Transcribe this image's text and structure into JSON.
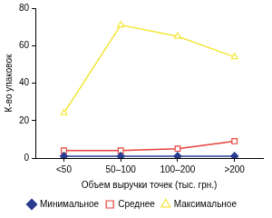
{
  "chart_data": {
    "type": "line",
    "x_label": "Объем выручки точек (тыс. грн.)",
    "y_label": "К-во упаковок",
    "categories": [
      "<50",
      "50–100",
      "100–200",
      ">200"
    ],
    "series": [
      {
        "name": "Минимальное",
        "color": "#2a3b8f",
        "marker": "diamond",
        "values": [
          1,
          1,
          1,
          1
        ]
      },
      {
        "name": "Среднее",
        "color": "#e8413a",
        "marker": "square",
        "values": [
          4,
          4,
          5,
          9
        ]
      },
      {
        "name": "Максимальное",
        "color": "#f5e63a",
        "marker": "triangle",
        "values": [
          24,
          71,
          65,
          54
        ]
      }
    ],
    "ylim": [
      0,
      80
    ],
    "yticks": [
      0,
      20,
      40,
      60,
      80
    ],
    "grid": false,
    "legend": "bottom"
  }
}
